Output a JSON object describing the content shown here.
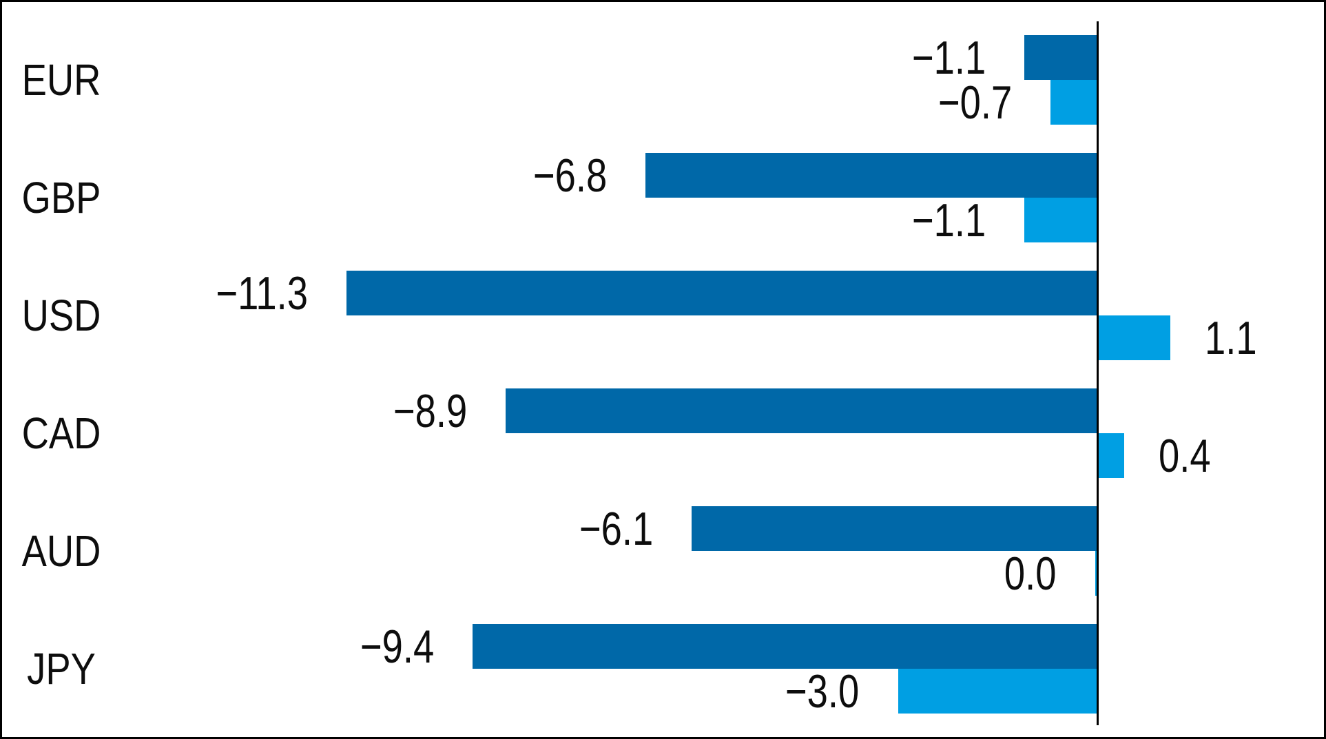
{
  "chart_data": {
    "type": "bar",
    "orientation": "horizontal",
    "title": "",
    "xlabel": "",
    "ylabel": "",
    "categories": [
      "EUR",
      "GBP",
      "USD",
      "CAD",
      "AUD",
      "JPY"
    ],
    "series": [
      {
        "name": "dark-blue-series",
        "color": "#0068a8",
        "values": [
          -1.1,
          -6.8,
          -11.3,
          -8.9,
          -6.1,
          -9.4
        ],
        "display_labels": [
          "−1.1",
          "−6.8",
          "−11.3",
          "−8.9",
          "−6.1",
          "−9.4"
        ]
      },
      {
        "name": "light-blue-series",
        "color": "#009fe3",
        "values": [
          -0.7,
          -1.1,
          1.1,
          0.4,
          0.0,
          -3.0
        ],
        "display_labels": [
          "−0.7",
          "−1.1",
          "1.1",
          "0.4",
          "0.0",
          "−3.0"
        ]
      }
    ],
    "baseline": 0,
    "xlim": [
      -16.2,
      3.4
    ],
    "grid": false,
    "legend": false,
    "zero_axis_line": true,
    "axis_line_color": "#000000",
    "text_color": "#0d0d0d",
    "background_color": "#ffffff",
    "border_color": "#000000"
  }
}
